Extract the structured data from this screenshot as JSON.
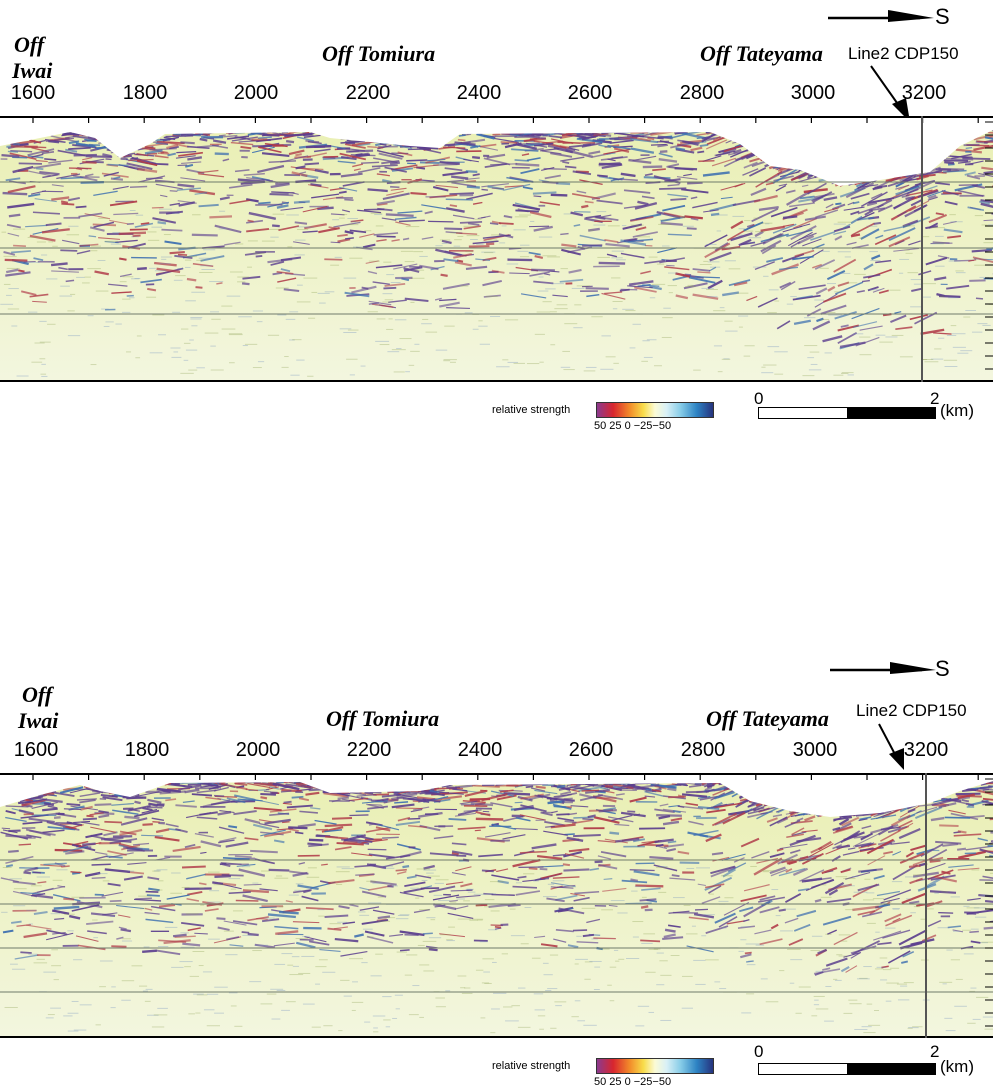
{
  "panels": [
    {
      "direction_label": "S",
      "location_labels": {
        "iwai_line1": "Off",
        "iwai_line2": "Iwai",
        "tomiura": "Off Tomiura",
        "tateyama": "Off Tateyama"
      },
      "line_marker": "Line2 CDP150",
      "cdp_ticks": [
        "1600",
        "1800",
        "2000",
        "2200",
        "2400",
        "2600",
        "2800",
        "3000",
        "3200"
      ],
      "legend": {
        "title": "relative strength",
        "ticks": "50   25    0  −25−50"
      },
      "scale": {
        "start": "0",
        "end": "2",
        "unit": "(km)"
      }
    },
    {
      "direction_label": "S",
      "location_labels": {
        "iwai_line1": "Off",
        "iwai_line2": "Iwai",
        "tomiura": "Off Tomiura",
        "tateyama": "Off Tateyama"
      },
      "line_marker": "Line2 CDP150",
      "cdp_ticks": [
        "1600",
        "1800",
        "2000",
        "2200",
        "2400",
        "2600",
        "2800",
        "3000",
        "3200"
      ],
      "legend": {
        "title": "relative strength",
        "ticks": "50   25    0  −25−50"
      },
      "scale": {
        "start": "0",
        "end": "2",
        "unit": "(km)"
      }
    }
  ],
  "colors": {
    "reflector_purple": "#5b3e8e",
    "reflector_red": "#b03a48",
    "background_yellow": "#e9efb2",
    "background_pale": "#f3f6df",
    "gridline": "#6f7a6a"
  }
}
